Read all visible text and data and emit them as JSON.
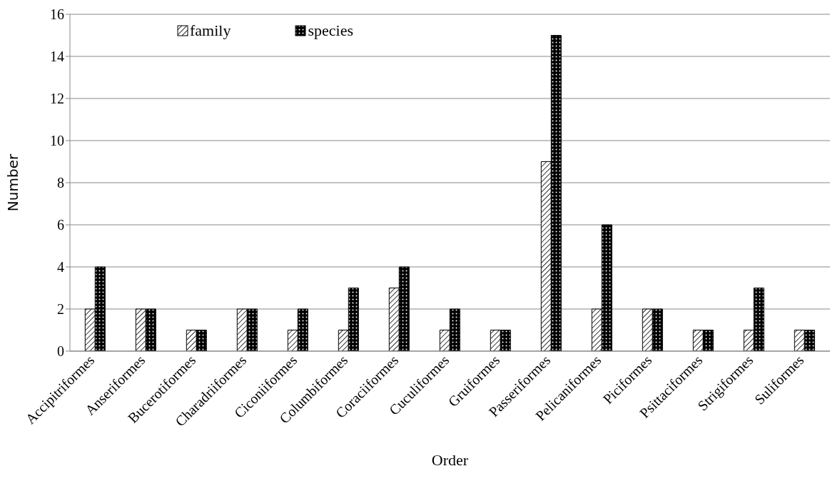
{
  "chart_data": {
    "type": "bar",
    "xlabel": "Order",
    "ylabel": "Number",
    "categories": [
      "Accipitriformes",
      "Anseriformes",
      "Bucerotiformes",
      "Charadriiformes",
      "Ciconiiformes",
      "Columbiformes",
      "Coraciiformes",
      "Cuculiformes",
      "Gruiformes",
      "Passeriformes",
      "Pelicaniformes",
      "Piciformes",
      "Psittaciformes",
      "Strigiformes",
      "Suliformes"
    ],
    "series": [
      {
        "name": "family",
        "color": "#000000",
        "values": [
          2,
          2,
          1,
          2,
          1,
          1,
          3,
          1,
          1,
          9,
          2,
          2,
          1,
          1,
          1
        ]
      },
      {
        "name": "species",
        "color": "#000000",
        "values": [
          4,
          2,
          1,
          2,
          2,
          3,
          4,
          2,
          1,
          15,
          6,
          2,
          1,
          3,
          1
        ]
      }
    ],
    "ylim": [
      0,
      16
    ],
    "yticks": [
      0,
      2,
      4,
      6,
      8,
      10,
      12,
      14,
      16
    ],
    "grid": "y",
    "legend": "top left"
  }
}
